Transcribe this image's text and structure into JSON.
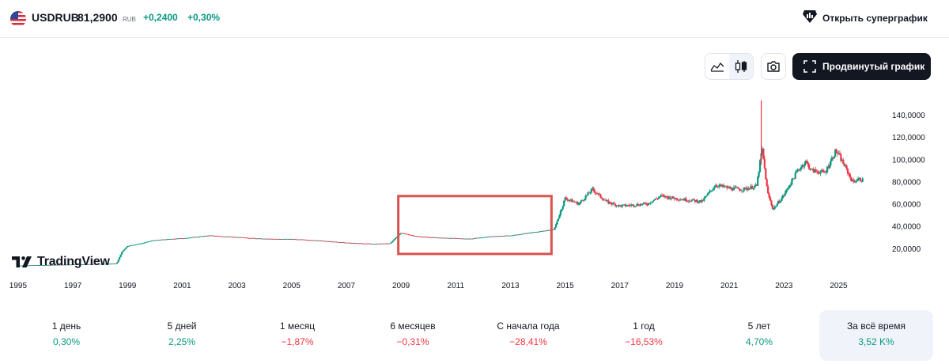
{
  "header": {
    "symbol": "USDRUB",
    "price": "81,2900",
    "currency": "RUB",
    "change": "+0,2400",
    "change_percent": "+0,30%",
    "supergraph_label": "Открыть суперграфик"
  },
  "toolbar": {
    "advanced_label": "Продвинутый график"
  },
  "logo": {
    "text": "TradingView"
  },
  "colors": {
    "up": "#089981",
    "down": "#f23645",
    "highlight": "#d9534f",
    "text": "#131722"
  },
  "chart_data": {
    "type": "candlestick",
    "series_name": "USDRUB",
    "x_tick_labels": [
      "1995",
      "1997",
      "1999",
      "2001",
      "2003",
      "2005",
      "2007",
      "2009",
      "2011",
      "2013",
      "2015",
      "2017",
      "2019",
      "2021",
      "2023",
      "2025"
    ],
    "y_tick_labels": [
      "140,0000",
      "120,0000",
      "100,0000",
      "80,0000",
      "60,0000",
      "40,0000",
      "20,0000"
    ],
    "y_ticks": [
      140,
      120,
      100,
      80,
      60,
      40,
      20
    ],
    "xlim": [
      1994.8,
      2026.2
    ],
    "ylim": [
      0,
      155
    ],
    "approx_price_path": [
      [
        1995.0,
        4.5
      ],
      [
        1996.0,
        5.0
      ],
      [
        1997.0,
        5.5
      ],
      [
        1998.0,
        6.0
      ],
      [
        1998.6,
        6.3
      ],
      [
        1998.8,
        17.0
      ],
      [
        1999.0,
        22.0
      ],
      [
        1999.5,
        24.5
      ],
      [
        2000.0,
        27.5
      ],
      [
        2001.0,
        29.0
      ],
      [
        2002.0,
        31.5
      ],
      [
        2003.0,
        30.0
      ],
      [
        2004.0,
        28.5
      ],
      [
        2005.0,
        28.3
      ],
      [
        2006.0,
        27.0
      ],
      [
        2007.0,
        25.0
      ],
      [
        2008.0,
        24.0
      ],
      [
        2008.6,
        24.5
      ],
      [
        2009.0,
        34.0
      ],
      [
        2009.5,
        31.0
      ],
      [
        2010.0,
        30.0
      ],
      [
        2011.0,
        29.0
      ],
      [
        2011.5,
        28.5
      ],
      [
        2012.0,
        30.0
      ],
      [
        2012.5,
        31.0
      ],
      [
        2013.0,
        31.5
      ],
      [
        2014.0,
        35.0
      ],
      [
        2014.6,
        37.0
      ],
      [
        2015.0,
        65.0
      ],
      [
        2015.5,
        60.0
      ],
      [
        2016.0,
        73.0
      ],
      [
        2016.5,
        62.0
      ],
      [
        2017.0,
        58.0
      ],
      [
        2018.0,
        60.0
      ],
      [
        2018.5,
        67.0
      ],
      [
        2019.0,
        65.0
      ],
      [
        2020.0,
        62.0
      ],
      [
        2020.5,
        77.0
      ],
      [
        2021.0,
        74.0
      ],
      [
        2021.5,
        73.0
      ],
      [
        2022.0,
        76.0
      ],
      [
        2022.2,
        110.0
      ],
      [
        2022.4,
        70.0
      ],
      [
        2022.6,
        55.0
      ],
      [
        2023.0,
        68.0
      ],
      [
        2023.5,
        90.0
      ],
      [
        2023.8,
        98.0
      ],
      [
        2024.0,
        90.0
      ],
      [
        2024.5,
        88.0
      ],
      [
        2024.9,
        108.0
      ],
      [
        2025.2,
        95.0
      ],
      [
        2025.5,
        80.0
      ],
      [
        2025.75,
        82.0
      ],
      [
        2025.9,
        81.29
      ]
    ],
    "annotations": [
      {
        "type": "rectangle",
        "from_year": 2008.9,
        "to_year": 2014.5,
        "y_low": 15,
        "y_high": 67
      }
    ]
  },
  "periods": [
    {
      "label": "1 день",
      "value": "0,30%",
      "tone": "pos"
    },
    {
      "label": "5 дней",
      "value": "2,25%",
      "tone": "pos"
    },
    {
      "label": "1 месяц",
      "value": "−1,87%",
      "tone": "neg"
    },
    {
      "label": "6 месяцев",
      "value": "−0,31%",
      "tone": "neg"
    },
    {
      "label": "С начала года",
      "value": "−28,41%",
      "tone": "neg"
    },
    {
      "label": "1 год",
      "value": "−16,53%",
      "tone": "neg"
    },
    {
      "label": "5 лет",
      "value": "4,70%",
      "tone": "pos"
    },
    {
      "label": "За всё время",
      "value": "3,52 K%",
      "tone": "pos",
      "selected": true
    }
  ]
}
